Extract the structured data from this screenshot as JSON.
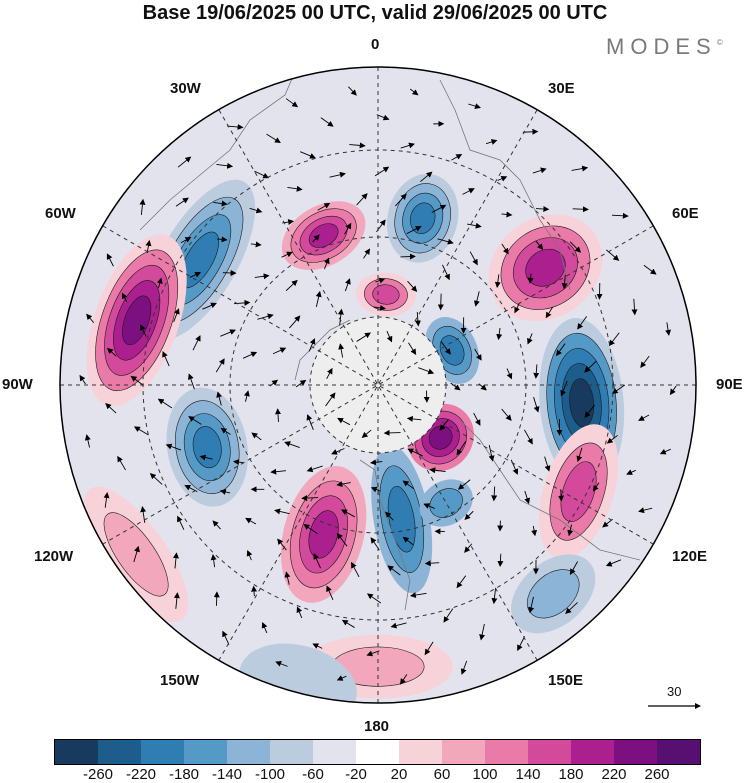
{
  "title": "Base 19/06/2025 00 UTC, valid 29/06/2025 00 UTC",
  "brand": "MODES",
  "brand_mark": "©",
  "longitude_labels": {
    "top": "0",
    "top_right": "30E",
    "right_upper": "60E",
    "right": "90E",
    "right_lower": "120E",
    "bottom_right": "150E",
    "bottom": "180",
    "bottom_left": "150W",
    "left_lower": "120W",
    "left": "90W",
    "left_upper": "60W",
    "top_left": "30W"
  },
  "reference_vector": {
    "label": "30",
    "icon": "arrow-right-icon"
  },
  "colorbar": {
    "colors": [
      "#173a5e",
      "#1c5d8c",
      "#2f7db3",
      "#5599c6",
      "#8cb4d6",
      "#bcccdf",
      "#e3e3ee",
      "#ffffff",
      "#f8d2d9",
      "#f2a7bc",
      "#ea7aa7",
      "#d3499b",
      "#ab1f8e",
      "#7d1080",
      "#571072"
    ],
    "tick_labels": [
      "-260",
      "-220",
      "-180",
      "-140",
      "-100",
      "-60",
      "-20",
      "20",
      "60",
      "100",
      "140",
      "180",
      "220",
      "260"
    ]
  },
  "field": {
    "background": "#e3e3ee",
    "pole_cap": "#eeeeee",
    "anomalies": [
      {
        "lon": -20,
        "lat": 55,
        "rx": 45,
        "ry": 30,
        "rot": -10,
        "levels": [
          "#f2a7bc",
          "#ea7aa7",
          "#d3499b",
          "#ab1f8e"
        ]
      },
      {
        "lon": 15,
        "lat": 52,
        "rx": 35,
        "ry": 45,
        "rot": 0,
        "levels": [
          "#bcccdf",
          "#8cb4d6",
          "#5599c6",
          "#2f7db3"
        ]
      },
      {
        "lon": -55,
        "lat": 42,
        "rx": 90,
        "ry": 38,
        "rot": -5,
        "levels": [
          "#bcccdf",
          "#8cb4d6",
          "#5599c6",
          "#2f7db3"
        ]
      },
      {
        "lon": -75,
        "lat": 35,
        "rx": 90,
        "ry": 42,
        "rot": 5,
        "levels": [
          "#f8d2d9",
          "#ea7aa7",
          "#d3499b",
          "#ab1f8e",
          "#7d1080"
        ]
      },
      {
        "lon": 5,
        "lat": 70,
        "rx": 30,
        "ry": 22,
        "rot": 0,
        "levels": [
          "#f8d2d9",
          "#ea7aa7",
          "#d3499b"
        ]
      },
      {
        "lon": 55,
        "lat": 45,
        "rx": 50,
        "ry": 60,
        "rot": 0,
        "levels": [
          "#f8d2d9",
          "#ea7aa7",
          "#d3499b",
          "#ab1f8e"
        ]
      },
      {
        "lon": 65,
        "lat": 72,
        "rx": 35,
        "ry": 25,
        "rot": 0,
        "levels": [
          "#8cb4d6",
          "#5599c6",
          "#2f7db3"
        ]
      },
      {
        "lon": 95,
        "lat": 45,
        "rx": 85,
        "ry": 42,
        "rot": -10,
        "levels": [
          "#bcccdf",
          "#5599c6",
          "#2f7db3",
          "#1c5d8c",
          "#173a5e"
        ]
      },
      {
        "lon": 130,
        "lat": 72,
        "rx": 35,
        "ry": 32,
        "rot": 0,
        "levels": [
          "#ea7aa7",
          "#d3499b",
          "#ab1f8e",
          "#7d1080"
        ]
      },
      {
        "lon": 118,
        "lat": 40,
        "rx": 70,
        "ry": 35,
        "rot": -10,
        "levels": [
          "#f8d2d9",
          "#ea7aa7",
          "#d3499b"
        ]
      },
      {
        "lon": 140,
        "lat": 30,
        "rx": 48,
        "ry": 32,
        "rot": 0,
        "levels": [
          "#bcccdf",
          "#8cb4d6"
        ]
      },
      {
        "lon": 170,
        "lat": 60,
        "rx": 28,
        "ry": 75,
        "rot": 0,
        "levels": [
          "#8cb4d6",
          "#5599c6",
          "#2f7db3"
        ]
      },
      {
        "lon": 180,
        "lat": 28,
        "rx": 75,
        "ry": 32,
        "rot": 0,
        "levels": [
          "#f8d2d9",
          "#f2a7bc"
        ]
      },
      {
        "lon": -160,
        "lat": 55,
        "rx": 40,
        "ry": 70,
        "rot": -5,
        "levels": [
          "#f2a7bc",
          "#ea7aa7",
          "#d3499b",
          "#ab1f8e"
        ]
      },
      {
        "lon": -110,
        "lat": 50,
        "rx": 60,
        "ry": 40,
        "rot": 10,
        "levels": [
          "#bcccdf",
          "#8cb4d6",
          "#5599c6",
          "#2f7db3"
        ]
      },
      {
        "lon": -125,
        "lat": 25,
        "rx": 80,
        "ry": 30,
        "rot": 0,
        "levels": [
          "#f8d2d9",
          "#f2a7bc"
        ]
      },
      {
        "lon": -165,
        "lat": 22,
        "rx": 60,
        "ry": 38,
        "rot": 0,
        "levels": [
          "#bcccdf"
        ]
      },
      {
        "lon": 150,
        "lat": 60,
        "rx": 28,
        "ry": 22,
        "rot": 0,
        "levels": [
          "#8cb4d6",
          "#5599c6"
        ]
      }
    ]
  }
}
